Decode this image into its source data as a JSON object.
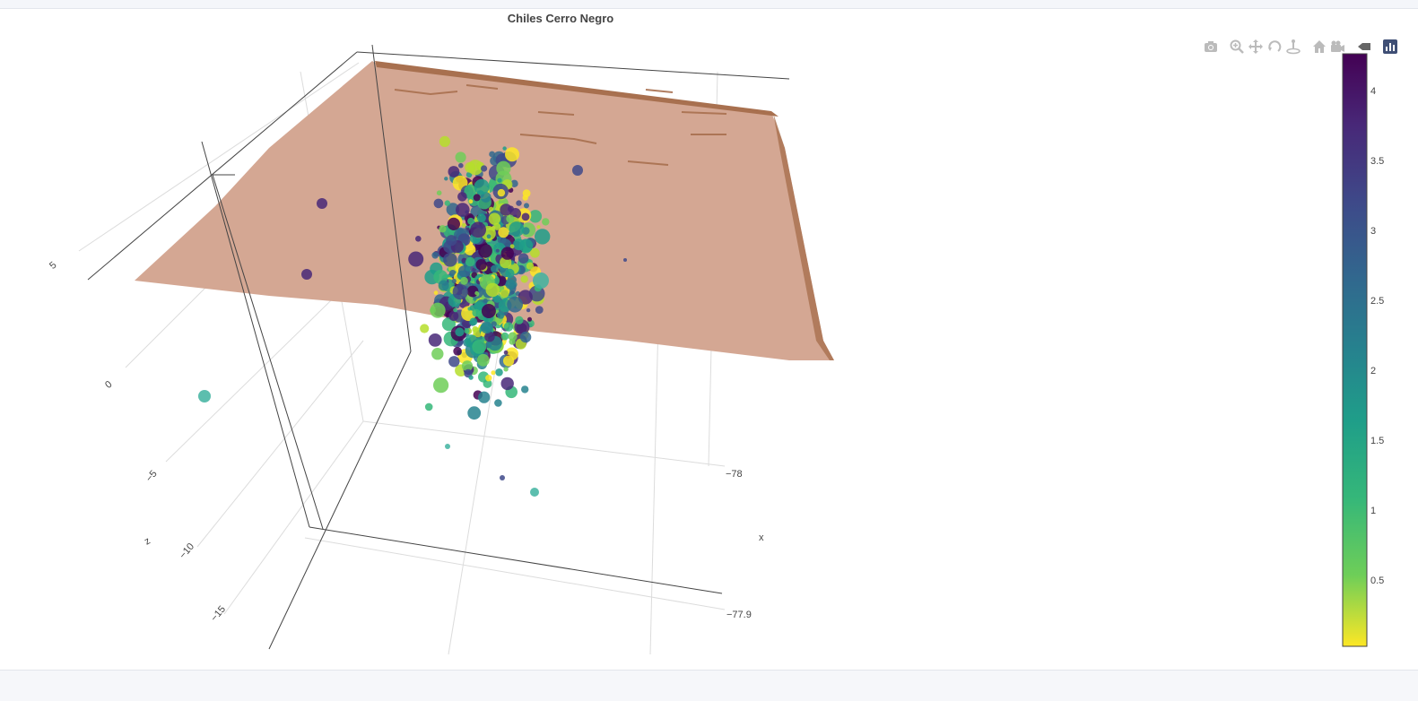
{
  "title": "Chiles Cerro Negro",
  "modebar": {
    "buttons": [
      {
        "name": "camera-icon"
      },
      {
        "name": "zoom-icon"
      },
      {
        "name": "pan-icon"
      },
      {
        "name": "orbit-rotation-icon"
      },
      {
        "name": "turntable-rotation-icon"
      },
      {
        "name": "reset-camera-default-icon"
      },
      {
        "name": "reset-camera-last-save-icon"
      },
      {
        "name": "hover-closest-icon"
      },
      {
        "name": "plotly-logo-icon"
      }
    ]
  },
  "chart_data": {
    "type": "scatter3d+surface",
    "title": "Chiles Cerro Negro",
    "axes": {
      "x": {
        "label": "x",
        "ticks": [
          "−78",
          "−77.9"
        ]
      },
      "z": {
        "label": "z",
        "ticks": [
          "5",
          "0",
          "−5",
          "−10",
          "−15"
        ]
      }
    },
    "colorbar": {
      "ticks": [
        "4",
        "3.5",
        "3",
        "2.5",
        "2",
        "1.5",
        "1",
        "0.5"
      ],
      "range": [
        0.1,
        4.25
      ],
      "colorscale": "viridis_reversed"
    },
    "surface_color": "#d4a793",
    "points": [
      [
        -77.97,
        -12.5,
        1.7
      ],
      [
        -77.93,
        -5.0,
        2.2
      ],
      [
        -77.93,
        -12.0,
        1.9
      ],
      [
        -77.935,
        -15.5,
        2.0
      ]
    ]
  }
}
